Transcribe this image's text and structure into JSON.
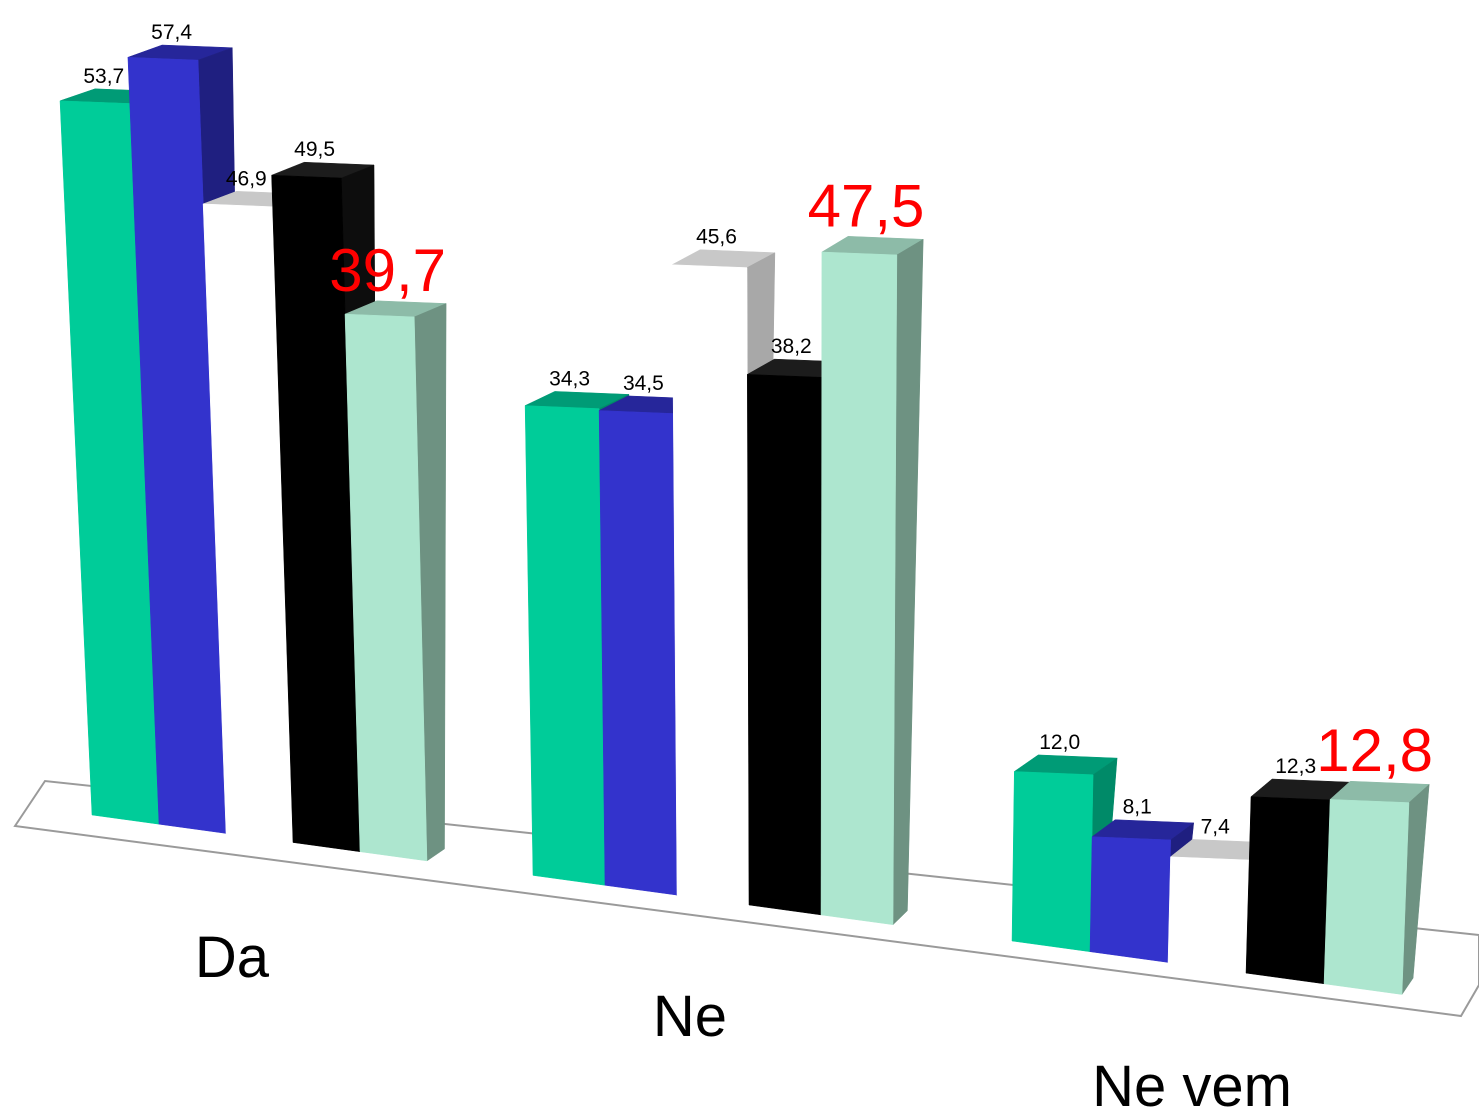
{
  "chart_data": {
    "type": "bar",
    "three_d": true,
    "title": "",
    "xlabel": "",
    "ylabel": "",
    "grid": false,
    "legend": "none",
    "categories": [
      "Da",
      "Ne",
      "Ne vem"
    ],
    "series": [
      {
        "values": [
          53.7,
          34.3,
          12.0
        ],
        "data_labels": [
          "53,7",
          "34,3",
          "12,0"
        ],
        "colors": {
          "front": "#00CC99",
          "top": "#009B76",
          "side": "#008A68"
        },
        "label_color": "#000000",
        "highlighted_labels": false
      },
      {
        "values": [
          57.4,
          34.5,
          8.1
        ],
        "data_labels": [
          "57,4",
          "34,5",
          "8,1"
        ],
        "colors": {
          "front": "#3333CC",
          "top": "#26269A",
          "side": "#1F1F80"
        },
        "label_color": "#000000",
        "highlighted_labels": false
      },
      {
        "values": [
          46.9,
          45.6,
          7.4
        ],
        "data_labels": [
          "46,9",
          "45,6",
          "7,4"
        ],
        "colors": {
          "front": "#FFFFFF",
          "top": "#C8C8C8",
          "side": "#A8A8A8"
        },
        "label_color": "#000000",
        "highlighted_labels": false
      },
      {
        "values": [
          49.5,
          38.2,
          12.3
        ],
        "data_labels": [
          "49,5",
          "38,2",
          "12,3"
        ],
        "colors": {
          "front": "#000000",
          "top": "#1C1C1C",
          "side": "#0D0D0D"
        },
        "label_color": "#000000",
        "highlighted_labels": false
      },
      {
        "values": [
          39.7,
          47.5,
          12.8
        ],
        "data_labels": [
          "39,7",
          "47,5",
          "12,8"
        ],
        "colors": {
          "front": "#ADE6CF",
          "top": "#8DBBA8",
          "side": "#6E9282"
        },
        "label_color": "#FF0000",
        "highlighted_labels": true
      }
    ]
  }
}
